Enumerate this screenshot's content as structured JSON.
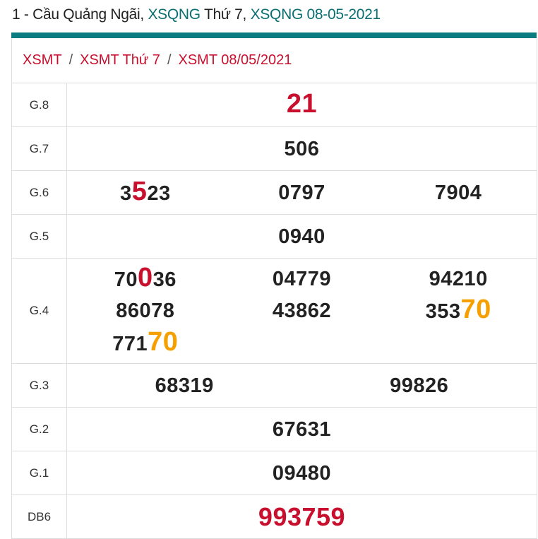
{
  "title": {
    "prefix": "1 - Cầu Quảng Ngãi, ",
    "link1": "XSQNG",
    "mid": " Thứ 7, ",
    "link2": "XSQNG 08-05-2021"
  },
  "breadcrumb": [
    "XSMT",
    "XSMT Thứ 7",
    "XSMT 08/05/2021"
  ],
  "breadcrumb_sep": "/",
  "colors": {
    "teal": "#0b7d80",
    "red": "#c8102e",
    "orange": "#f5a000"
  },
  "rows": [
    {
      "label": "G.8",
      "cols": 1,
      "numbers": [
        [
          {
            "t": "21",
            "hl": "red"
          }
        ]
      ]
    },
    {
      "label": "G.7",
      "cols": 1,
      "numbers": [
        [
          {
            "t": "506"
          }
        ]
      ]
    },
    {
      "label": "G.6",
      "cols": 3,
      "numbers": [
        [
          {
            "t": "3"
          },
          {
            "t": "5",
            "hl": "red"
          },
          {
            "t": "23"
          }
        ],
        [
          {
            "t": "0797"
          }
        ],
        [
          {
            "t": "7904"
          }
        ]
      ]
    },
    {
      "label": "G.5",
      "cols": 1,
      "numbers": [
        [
          {
            "t": "0940"
          }
        ]
      ]
    },
    {
      "label": "G.4",
      "cols": 3,
      "numbers": [
        [
          {
            "t": "70"
          },
          {
            "t": "0",
            "hl": "red"
          },
          {
            "t": "36"
          }
        ],
        [
          {
            "t": "04779"
          }
        ],
        [
          {
            "t": "94210"
          }
        ],
        [
          {
            "t": "86078"
          }
        ],
        [
          {
            "t": "43862"
          }
        ],
        [
          {
            "t": "353"
          },
          {
            "t": "70",
            "hl": "org"
          }
        ],
        [
          {
            "t": "771"
          },
          {
            "t": "70",
            "hl": "org"
          }
        ]
      ]
    },
    {
      "label": "G.3",
      "cols": 2,
      "numbers": [
        [
          {
            "t": "68319"
          }
        ],
        [
          {
            "t": "99826"
          }
        ]
      ]
    },
    {
      "label": "G.2",
      "cols": 1,
      "numbers": [
        [
          {
            "t": "67631"
          }
        ]
      ]
    },
    {
      "label": "G.1",
      "cols": 1,
      "numbers": [
        [
          {
            "t": "09480"
          }
        ]
      ]
    },
    {
      "label": "DB6",
      "cols": 1,
      "big": true,
      "numbers": [
        [
          {
            "t": "993759"
          }
        ]
      ]
    }
  ]
}
